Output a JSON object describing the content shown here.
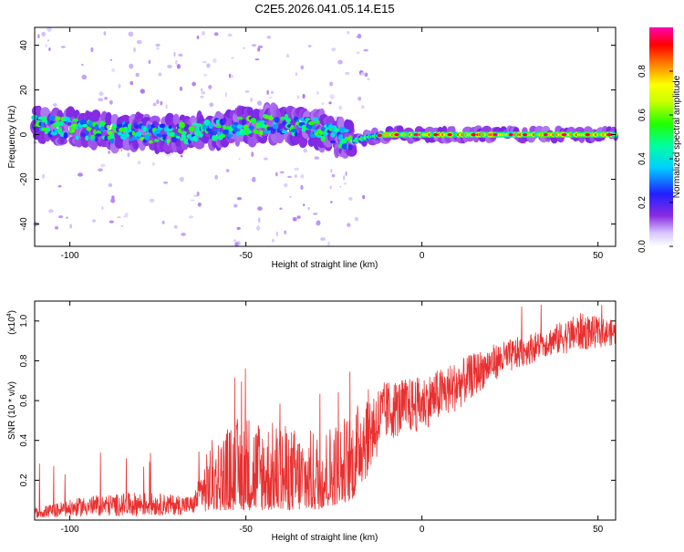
{
  "title": "C2E5.2026.041.05.14.E15",
  "chart_data": [
    {
      "type": "heatmap",
      "title": "C2E5.2026.041.05.14.E15",
      "xlabel": "Height of straight line (km)",
      "ylabel": "Frequency (Hz)",
      "xlim": [
        -110,
        55
      ],
      "ylim": [
        -50,
        48
      ],
      "xticks": [
        -100,
        -50,
        0,
        50
      ],
      "yticks": [
        -40,
        -20,
        0,
        20,
        40
      ],
      "description_of_ridge": [
        {
          "x": -108,
          "y": 4
        },
        {
          "x": -100,
          "y": 3
        },
        {
          "x": -90,
          "y": 1
        },
        {
          "x": -80,
          "y": 1
        },
        {
          "x": -70,
          "y": 0
        },
        {
          "x": -60,
          "y": 2
        },
        {
          "x": -50,
          "y": 4
        },
        {
          "x": -40,
          "y": 5
        },
        {
          "x": -30,
          "y": 3
        },
        {
          "x": -25,
          "y": 0
        },
        {
          "x": -20,
          "y": -3
        },
        {
          "x": -15,
          "y": -1
        },
        {
          "x": -10,
          "y": 0
        },
        {
          "x": 0,
          "y": 0
        },
        {
          "x": 20,
          "y": 0
        },
        {
          "x": 40,
          "y": 0
        },
        {
          "x": 55,
          "y": 0
        }
      ],
      "colorbar": {
        "label": "Normalized spectral amplitude",
        "range": [
          0,
          1
        ],
        "ticks": [
          "0.0",
          "0.2",
          "0.4",
          "0.6",
          "0.8"
        ],
        "tick_values": [
          0,
          0.2,
          0.4,
          0.6,
          0.8
        ]
      }
    },
    {
      "type": "line",
      "xlabel": "Height of straight line (km)",
      "ylabel": "SNR (10 * v/v)",
      "multiplier_label": "(x10",
      "multiplier_exp": "4",
      "multiplier_close": ")",
      "xlim": [
        -110,
        55
      ],
      "ylim": [
        0,
        1.1
      ],
      "xticks": [
        -100,
        -50,
        0,
        50
      ],
      "yticks": [
        "0.2",
        "0.4",
        "0.6",
        "0.8",
        "1.0"
      ],
      "ytick_values": [
        0.2,
        0.4,
        0.6,
        0.8,
        1.0
      ],
      "color": "#e83030",
      "envelope": [
        {
          "x": -110,
          "lo": 0.01,
          "hi": 0.06
        },
        {
          "x": -95,
          "lo": 0.02,
          "hi": 0.12
        },
        {
          "x": -80,
          "lo": 0.02,
          "hi": 0.14
        },
        {
          "x": -65,
          "lo": 0.03,
          "hi": 0.12
        },
        {
          "x": -60,
          "lo": 0.05,
          "hi": 0.4
        },
        {
          "x": -50,
          "lo": 0.05,
          "hi": 0.55
        },
        {
          "x": -40,
          "lo": 0.05,
          "hi": 0.48
        },
        {
          "x": -30,
          "lo": 0.05,
          "hi": 0.45
        },
        {
          "x": -20,
          "lo": 0.1,
          "hi": 0.55
        },
        {
          "x": -16,
          "lo": 0.2,
          "hi": 0.65
        },
        {
          "x": -10,
          "lo": 0.4,
          "hi": 0.7
        },
        {
          "x": 0,
          "lo": 0.45,
          "hi": 0.72
        },
        {
          "x": 10,
          "lo": 0.55,
          "hi": 0.8
        },
        {
          "x": 20,
          "lo": 0.7,
          "hi": 0.88
        },
        {
          "x": 35,
          "lo": 0.82,
          "hi": 0.96
        },
        {
          "x": 45,
          "lo": 0.85,
          "hi": 1.04
        },
        {
          "x": 55,
          "lo": 0.88,
          "hi": 1.0
        }
      ]
    }
  ]
}
